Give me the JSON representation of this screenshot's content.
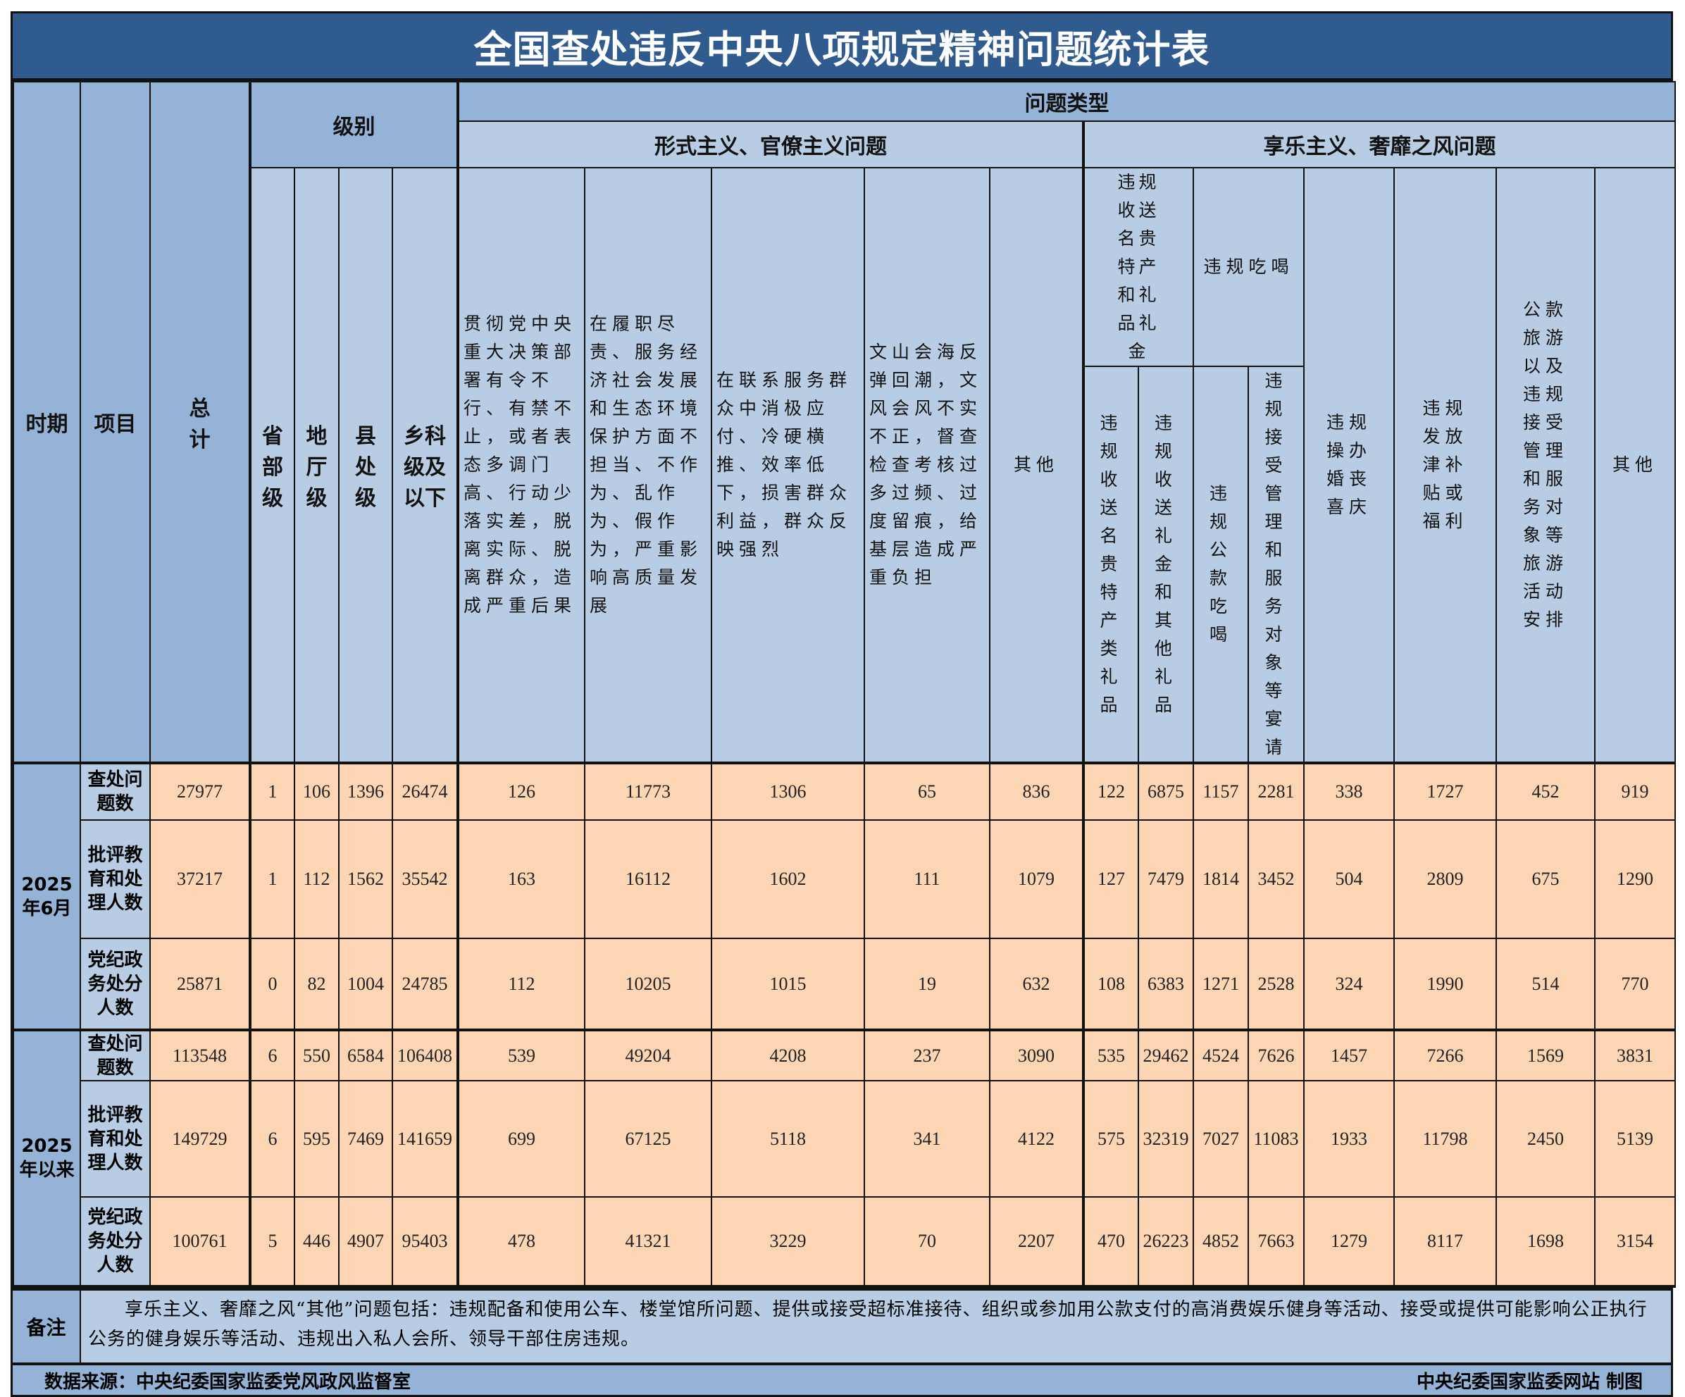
{
  "title": "全国查处违反中央八项规定精神问题统计表",
  "header": {
    "period": "时期",
    "item": "项目",
    "total": "总计",
    "level": "级别",
    "problem_type": "问题类型",
    "formalism": "形式主义、官僚主义问题",
    "hedonism": "享乐主义、奢靡之风问题",
    "levels": [
      "省部级",
      "地厅级",
      "县处级",
      "乡科级及以下"
    ],
    "formalism_cols": [
      "贯彻党中央重大决策部署有令不行、有禁不止，或者表态多调门高、行动少落实差，脱离实际、脱离群众，造成严重后果",
      "在履职尽责、服务经济社会发展和生态环境保护方面不担当、不作为、乱作为、假作为，严重影响高质量发展",
      "在联系服务群众中消极应付、冷硬横推、效率低下，损害群众利益，群众反映强烈",
      "文山会海反弹回潮，文风会风不实不正，督查检查考核过多过频、过度留痕，给基层造成严重负担",
      "其他"
    ],
    "gifts": "违规收送名贵特产和礼品礼金",
    "gifts_sub": [
      "违规收送名贵特产类礼品",
      "违规收送礼金和其他礼品"
    ],
    "dining": "违规吃喝",
    "dining_sub": [
      "违规公款吃喝",
      "违规接受管理和服务对象等宴请"
    ],
    "hedonism_cols": [
      "违规操办婚丧喜庆",
      "违规发放津补贴或福利",
      "公款旅游以及违规接受管理和服务对象等旅游活动安排",
      "其他"
    ]
  },
  "groups": [
    {
      "period": "2025年6月",
      "rows": [
        {
          "item": "查处问题数",
          "values": [
            "27977",
            "1",
            "106",
            "1396",
            "26474",
            "126",
            "11773",
            "1306",
            "65",
            "836",
            "122",
            "6875",
            "1157",
            "2281",
            "338",
            "1727",
            "452",
            "919"
          ]
        },
        {
          "item": "批评教育和处理人数",
          "values": [
            "37217",
            "1",
            "112",
            "1562",
            "35542",
            "163",
            "16112",
            "1602",
            "111",
            "1079",
            "127",
            "7479",
            "1814",
            "3452",
            "504",
            "2809",
            "675",
            "1290"
          ]
        },
        {
          "item": "党纪政务处分人数",
          "values": [
            "25871",
            "0",
            "82",
            "1004",
            "24785",
            "112",
            "10205",
            "1015",
            "19",
            "632",
            "108",
            "6383",
            "1271",
            "2528",
            "324",
            "1990",
            "514",
            "770"
          ]
        }
      ]
    },
    {
      "period": "2025年以来",
      "rows": [
        {
          "item": "查处问题数",
          "values": [
            "113548",
            "6",
            "550",
            "6584",
            "106408",
            "539",
            "49204",
            "4208",
            "237",
            "3090",
            "535",
            "29462",
            "4524",
            "7626",
            "1457",
            "7266",
            "1569",
            "3831"
          ]
        },
        {
          "item": "批评教育和处理人数",
          "values": [
            "149729",
            "6",
            "595",
            "7469",
            "141659",
            "699",
            "67125",
            "5118",
            "341",
            "4122",
            "575",
            "32319",
            "7027",
            "11083",
            "1933",
            "11798",
            "2450",
            "5139"
          ]
        },
        {
          "item": "党纪政务处分人数",
          "values": [
            "100761",
            "5",
            "446",
            "4907",
            "95403",
            "478",
            "41321",
            "3229",
            "70",
            "2207",
            "470",
            "26223",
            "4852",
            "7663",
            "1279",
            "8117",
            "1698",
            "3154"
          ]
        }
      ]
    }
  ],
  "notes": {
    "label": "备注",
    "text": "享乐主义、奢靡之风“其他”问题包括：违规配备和使用公车、楼堂馆所问题、提供或接受超标准接待、组织或参加用公款支付的高消费娱乐健身等活动、接受或提供可能影响公正执行公务的健身娱乐等活动、违规出入私人会所、领导干部住房违规。"
  },
  "footer": {
    "source": "数据来源：中央纪委国家监委党风政风监督室",
    "credit": "中央纪委国家监委网站 制图"
  },
  "colors": {
    "title_bg": "#2f5b8f",
    "header_dark": "#95b3d7",
    "header_light": "#b8cce4",
    "data_bg": "#fcd5b4"
  }
}
